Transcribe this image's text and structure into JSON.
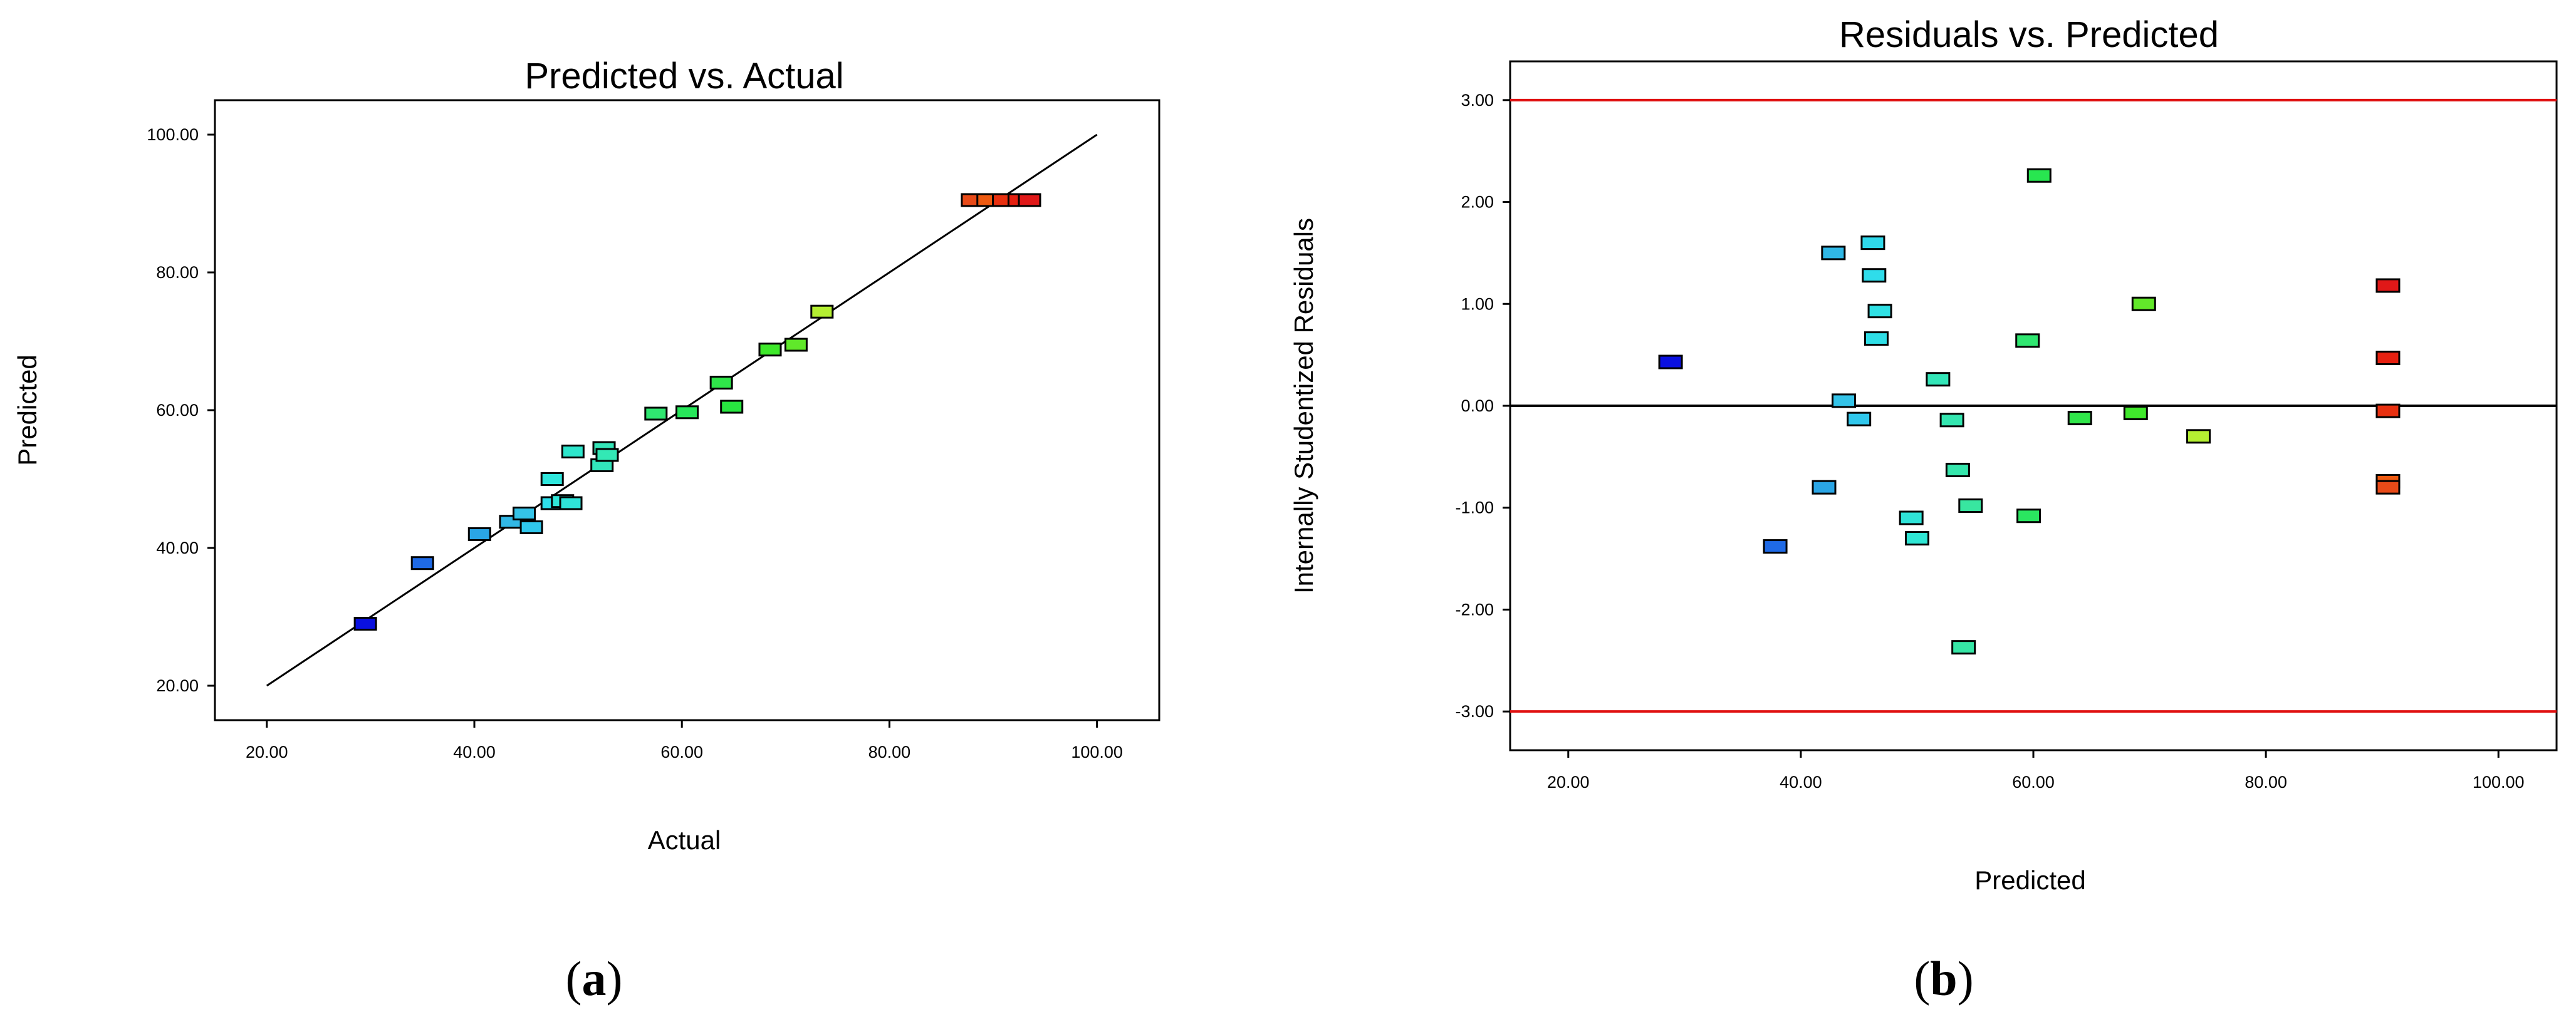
{
  "chart_data": [
    {
      "type": "scatter",
      "title": "Predicted vs. Actual",
      "xlabel": "Actual",
      "ylabel": "Predicted",
      "xlim": [
        15,
        106
      ],
      "ylim": [
        15,
        105
      ],
      "xticks": [
        "20.00",
        "40.00",
        "60.00",
        "80.00",
        "100.00"
      ],
      "yticks": [
        "20.00",
        "40.00",
        "60.00",
        "80.00",
        "100.00"
      ],
      "grid": false,
      "reference_line": {
        "from": [
          20,
          20
        ],
        "to": [
          100,
          100
        ],
        "color": "#000000"
      },
      "points": [
        {
          "x": 29.5,
          "y": 29.0,
          "color": "#0a10e0"
        },
        {
          "x": 35.0,
          "y": 37.8,
          "color": "#1f6ae6"
        },
        {
          "x": 40.5,
          "y": 42.0,
          "color": "#2aa5e5"
        },
        {
          "x": 43.5,
          "y": 43.8,
          "color": "#32b8e6"
        },
        {
          "x": 44.8,
          "y": 45.0,
          "color": "#34c3e8"
        },
        {
          "x": 45.5,
          "y": 43.0,
          "color": "#30c7ec"
        },
        {
          "x": 47.5,
          "y": 46.5,
          "color": "#2ee0ea"
        },
        {
          "x": 47.5,
          "y": 50.0,
          "color": "#2fe6dc"
        },
        {
          "x": 48.5,
          "y": 46.8,
          "color": "#2fe6d8"
        },
        {
          "x": 49.3,
          "y": 46.5,
          "color": "#2fe3d8"
        },
        {
          "x": 49.5,
          "y": 54.0,
          "color": "#2ee6cc"
        },
        {
          "x": 52.3,
          "y": 52.0,
          "color": "#32e6bc"
        },
        {
          "x": 52.5,
          "y": 54.5,
          "color": "#35e6b8"
        },
        {
          "x": 52.8,
          "y": 53.5,
          "color": "#33e8b5"
        },
        {
          "x": 57.5,
          "y": 59.5,
          "color": "#2fe670"
        },
        {
          "x": 60.5,
          "y": 59.7,
          "color": "#27e65a"
        },
        {
          "x": 63.8,
          "y": 64.0,
          "color": "#2fe64a"
        },
        {
          "x": 64.8,
          "y": 60.5,
          "color": "#28e640"
        },
        {
          "x": 68.5,
          "y": 68.8,
          "color": "#3ee82a"
        },
        {
          "x": 71.0,
          "y": 69.5,
          "color": "#60e82a"
        },
        {
          "x": 73.5,
          "y": 74.3,
          "color": "#b4ef32"
        },
        {
          "x": 88.0,
          "y": 90.5,
          "color": "#e84a18"
        },
        {
          "x": 89.5,
          "y": 90.5,
          "color": "#ee5a10"
        },
        {
          "x": 91.0,
          "y": 90.5,
          "color": "#e83010"
        },
        {
          "x": 92.5,
          "y": 90.5,
          "color": "#e62010"
        },
        {
          "x": 93.5,
          "y": 90.5,
          "color": "#e01818"
        }
      ]
    },
    {
      "type": "scatter",
      "title": "Residuals vs. Predicted",
      "xlabel": "Predicted",
      "ylabel": "Internally Studentized Residuals",
      "xlim": [
        15,
        105
      ],
      "ylim": [
        -3.38,
        3.38
      ],
      "xticks": [
        "20.00",
        "40.00",
        "60.00",
        "80.00",
        "100.00"
      ],
      "yticks": [
        "3.00",
        "2.00",
        "1.00",
        "0.00",
        "-1.00",
        "-2.00",
        "-3.00"
      ],
      "grid": false,
      "reference_lines": [
        {
          "y": 3.0,
          "color": "#e01010"
        },
        {
          "y": 0.0,
          "color": "#000000"
        },
        {
          "y": -3.0,
          "color": "#e01010"
        }
      ],
      "points": [
        {
          "x": 28.8,
          "y": 0.43,
          "color": "#0a10e0"
        },
        {
          "x": 37.8,
          "y": -1.38,
          "color": "#1f6ae6"
        },
        {
          "x": 42.0,
          "y": -0.8,
          "color": "#2aa5e5"
        },
        {
          "x": 42.8,
          "y": 1.5,
          "color": "#30b8e6"
        },
        {
          "x": 43.7,
          "y": 0.05,
          "color": "#34c3e8"
        },
        {
          "x": 45.0,
          "y": -0.13,
          "color": "#30c7ec"
        },
        {
          "x": 46.2,
          "y": 1.6,
          "color": "#2fd8ea"
        },
        {
          "x": 46.3,
          "y": 1.28,
          "color": "#2fdcea"
        },
        {
          "x": 46.5,
          "y": 0.66,
          "color": "#2fdee6"
        },
        {
          "x": 46.8,
          "y": 0.93,
          "color": "#2fe0e4"
        },
        {
          "x": 49.5,
          "y": -1.1,
          "color": "#2fe3d8"
        },
        {
          "x": 50.0,
          "y": -1.3,
          "color": "#2fe6d4"
        },
        {
          "x": 51.8,
          "y": 0.26,
          "color": "#33e6b8"
        },
        {
          "x": 53.0,
          "y": -0.14,
          "color": "#34e6b0"
        },
        {
          "x": 53.5,
          "y": -0.63,
          "color": "#35e6ac"
        },
        {
          "x": 54.0,
          "y": -2.37,
          "color": "#36e6a6"
        },
        {
          "x": 54.6,
          "y": -0.98,
          "color": "#38e6a0"
        },
        {
          "x": 59.5,
          "y": 0.64,
          "color": "#2fe670"
        },
        {
          "x": 59.6,
          "y": -1.08,
          "color": "#2ae660"
        },
        {
          "x": 60.5,
          "y": 2.26,
          "color": "#28e650"
        },
        {
          "x": 64.0,
          "y": -0.12,
          "color": "#30e64a"
        },
        {
          "x": 68.8,
          "y": -0.07,
          "color": "#40e82c"
        },
        {
          "x": 69.5,
          "y": 1.0,
          "color": "#62e82a"
        },
        {
          "x": 74.2,
          "y": -0.3,
          "color": "#b4ef32"
        },
        {
          "x": 90.5,
          "y": 1.18,
          "color": "#e01818"
        },
        {
          "x": 90.5,
          "y": 0.47,
          "color": "#e62010"
        },
        {
          "x": 90.5,
          "y": -0.05,
          "color": "#e83010"
        },
        {
          "x": 90.5,
          "y": -0.74,
          "color": "#ee5a10"
        },
        {
          "x": 90.5,
          "y": -0.8,
          "color": "#e84a18"
        }
      ]
    }
  ],
  "panels": {
    "a": {
      "open": "(",
      "letter": "a",
      "close": ")"
    },
    "b": {
      "open": "(",
      "letter": "b",
      "close": ")"
    }
  }
}
